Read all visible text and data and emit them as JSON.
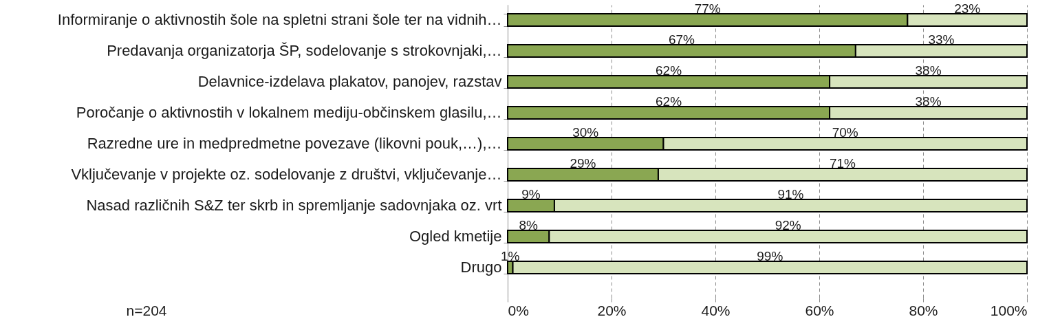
{
  "chart_data": {
    "type": "bar",
    "orientation": "horizontal",
    "stacked": true,
    "categories": [
      "Informiranje o aktivnostih šole na spletni strani šole ter na vidnih…",
      "Predavanja organizatorja ŠP, sodelovanje s strokovnjaki,…",
      "Delavnice-izdelava plakatov, panojev, razstav",
      "Poročanje o aktivnostih v lokalnem mediju-občinskem glasilu,…",
      "Razredne ure in medpredmetne povezave (likovni pouk,…),…",
      "Vključevanje v projekte oz. sodelovanje z društvi, vključevanje…",
      "Nasad različnih S&Z ter skrb in spremljanje sadovnjaka oz. vrt",
      "Ogled kmetije",
      "Drugo"
    ],
    "series": [
      {
        "color": "#8aa752",
        "values": [
          77,
          67,
          62,
          62,
          30,
          29,
          9,
          8,
          1
        ],
        "value_labels": [
          "77%",
          "67%",
          "62%",
          "62%",
          "30%",
          "29%",
          "9%",
          "8%",
          "1%"
        ]
      },
      {
        "color": "#d7e4bd",
        "values": [
          23,
          33,
          38,
          38,
          70,
          71,
          91,
          92,
          99
        ],
        "value_labels": [
          "23%",
          "33%",
          "38%",
          "38%",
          "70%",
          "71%",
          "91%",
          "92%",
          "99%"
        ]
      }
    ],
    "xlim": [
      0,
      100
    ],
    "xticks": [
      {
        "value": 0,
        "label": "0%"
      },
      {
        "value": 20,
        "label": "20%"
      },
      {
        "value": 40,
        "label": "40%"
      },
      {
        "value": 60,
        "label": "60%"
      },
      {
        "value": 80,
        "label": "80%"
      },
      {
        "value": 100,
        "label": "100%"
      }
    ],
    "grid": "x",
    "annotations": [
      "n=204"
    ]
  }
}
